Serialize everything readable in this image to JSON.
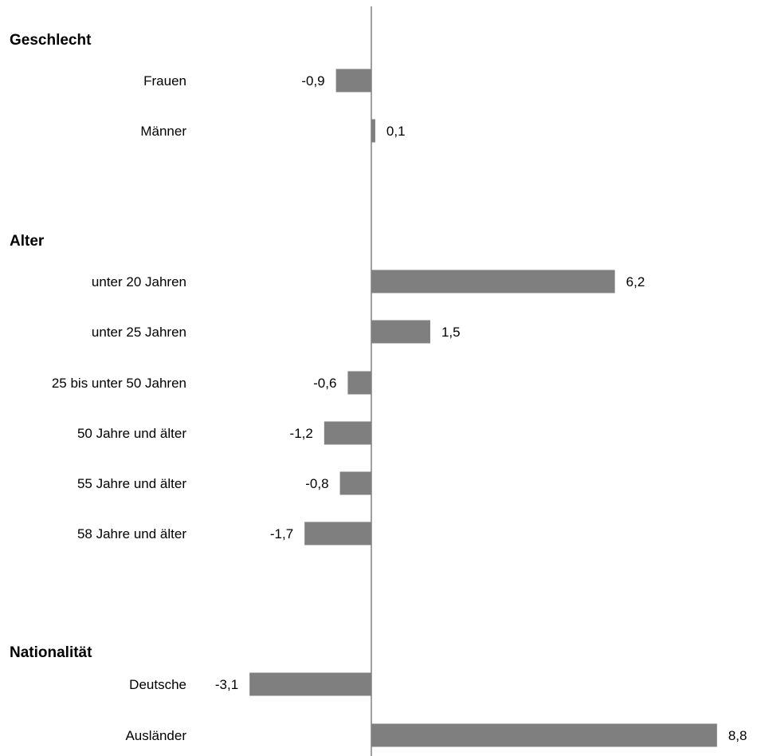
{
  "chart_data": {
    "type": "bar",
    "orientation": "horizontal",
    "colors": {
      "bar": "#7f7f7f",
      "axis": "#808080"
    },
    "groups": [
      {
        "label": "Geschlecht",
        "items": [
          {
            "category": "Frauen",
            "value": -0.9,
            "label": "-0,9"
          },
          {
            "category": "Männer",
            "value": 0.1,
            "label": "0,1"
          }
        ]
      },
      {
        "label": "Alter",
        "items": [
          {
            "category": "unter 20 Jahren",
            "value": 6.2,
            "label": "6,2"
          },
          {
            "category": "unter 25 Jahren",
            "value": 1.5,
            "label": "1,5"
          },
          {
            "category": "25 bis unter 50 Jahren",
            "value": -0.6,
            "label": "-0,6"
          },
          {
            "category": "50 Jahre und älter",
            "value": -1.2,
            "label": "-1,2"
          },
          {
            "category": "55 Jahre und älter",
            "value": -0.8,
            "label": "-0,8"
          },
          {
            "category": "58 Jahre und älter",
            "value": -1.7,
            "label": "-1,7"
          }
        ]
      },
      {
        "label": "Nationalität",
        "items": [
          {
            "category": "Deutsche",
            "value": -3.1,
            "label": "-3,1"
          },
          {
            "category": "Ausländer",
            "value": 8.8,
            "label": "8,8"
          }
        ]
      }
    ]
  }
}
